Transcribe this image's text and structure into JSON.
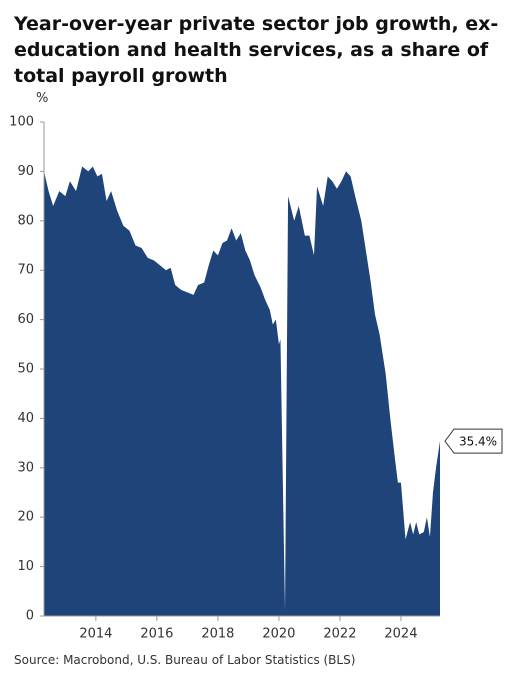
{
  "chart_data": {
    "type": "area",
    "title": "Year-over-year private sector job growth, ex-education and health services, as a share of total payroll growth",
    "title_lines": [
      "Year-over-year private sector job growth, ex-",
      "education and health services, as a share of",
      "total payroll growth"
    ],
    "y_label": "%",
    "source": "Source: Macrobond, U.S. Bureau of Labor Statistics (BLS)",
    "annotation": "35.4%",
    "color": "#1f4479",
    "xlim": [
      2012.3,
      2025.28
    ],
    "xticks": [
      2014,
      2016,
      2018,
      2020,
      2022,
      2024
    ],
    "ylim": [
      0,
      100
    ],
    "yticks": [
      0,
      10,
      20,
      30,
      40,
      50,
      60,
      70,
      80,
      90,
      100
    ],
    "grid": false,
    "x": [
      2012.3,
      2012.45,
      2012.6,
      2012.8,
      2013.0,
      2013.15,
      2013.35,
      2013.55,
      2013.75,
      2013.9,
      2014.05,
      2014.2,
      2014.35,
      2014.5,
      2014.7,
      2014.9,
      2015.1,
      2015.3,
      2015.5,
      2015.7,
      2015.9,
      2016.1,
      2016.3,
      2016.45,
      2016.6,
      2016.8,
      2017.0,
      2017.2,
      2017.35,
      2017.55,
      2017.7,
      2017.85,
      2018.0,
      2018.15,
      2018.3,
      2018.45,
      2018.6,
      2018.75,
      2018.9,
      2019.05,
      2019.2,
      2019.4,
      2019.55,
      2019.7,
      2019.8,
      2019.9,
      2020.0,
      2020.05,
      2020.2,
      2020.3,
      2020.5,
      2020.65,
      2020.85,
      2021.0,
      2021.15,
      2021.25,
      2021.45,
      2021.6,
      2021.75,
      2021.9,
      2022.05,
      2022.2,
      2022.35,
      2022.5,
      2022.7,
      2022.85,
      2023.0,
      2023.15,
      2023.3,
      2023.5,
      2023.65,
      2023.8,
      2023.9,
      2024.0,
      2024.15,
      2024.3,
      2024.4,
      2024.5,
      2024.6,
      2024.75,
      2024.85,
      2024.95,
      2025.05,
      2025.15,
      2025.28
    ],
    "values": [
      90,
      86,
      83,
      86,
      85,
      88,
      86,
      91,
      90,
      91,
      89,
      89.5,
      84,
      86,
      82,
      79,
      78,
      75,
      74.5,
      72.5,
      72,
      71,
      70,
      70.5,
      67,
      66,
      65.5,
      65,
      67,
      67.5,
      71,
      74,
      73,
      75.5,
      76,
      78.5,
      76,
      77.5,
      74,
      72,
      69,
      66.5,
      64,
      62,
      59,
      60,
      55,
      56,
      1,
      85,
      80,
      83,
      77,
      77,
      73,
      87,
      83,
      89,
      88,
      86.5,
      88,
      90,
      89,
      85,
      80,
      74,
      68,
      61,
      57,
      49,
      40,
      32,
      27,
      27,
      15.5,
      19,
      16.5,
      19,
      16.5,
      17,
      20,
      16,
      25,
      30,
      35.4
    ]
  }
}
